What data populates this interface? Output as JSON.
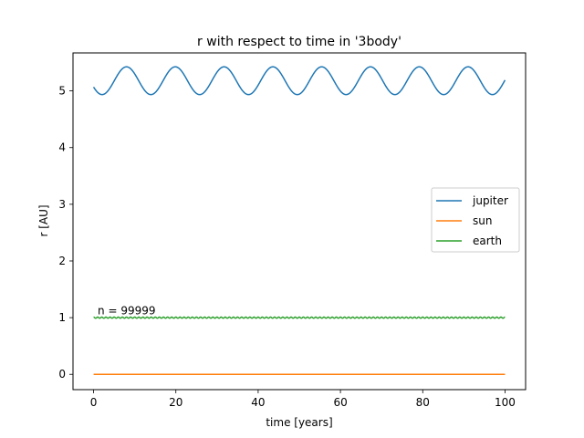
{
  "chart_data": {
    "type": "line",
    "title": "r with respect to time in '3body'",
    "xlabel": "time [years]",
    "ylabel": "r [AU]",
    "xlim": [
      -5,
      105
    ],
    "ylim": [
      -0.27,
      5.67
    ],
    "xticks": [
      0,
      20,
      40,
      60,
      80,
      100
    ],
    "yticks": [
      0,
      1,
      2,
      3,
      4,
      5
    ],
    "grid": false,
    "legend_position": "center-right",
    "annotation": {
      "text": "n = 99999",
      "x": 1,
      "y": 1.06
    },
    "series": [
      {
        "name": "jupiter",
        "color": "#1f77b4",
        "model": "oscillation",
        "mean": 5.18,
        "amplitude": 0.245,
        "period": 11.86,
        "phase_peak_year": 8.0,
        "x_range": [
          0,
          100
        ],
        "start_value": 5.12,
        "end_value": 5.24
      },
      {
        "name": "sun",
        "color": "#ff7f0e",
        "model": "constant",
        "value": 0.0,
        "x_range": [
          0,
          100
        ]
      },
      {
        "name": "earth",
        "color": "#2ca02c",
        "model": "oscillation",
        "mean": 1.0,
        "amplitude": 0.01,
        "period": 1.0,
        "phase_peak_year": 0.0,
        "x_range": [
          0,
          100
        ]
      }
    ]
  }
}
